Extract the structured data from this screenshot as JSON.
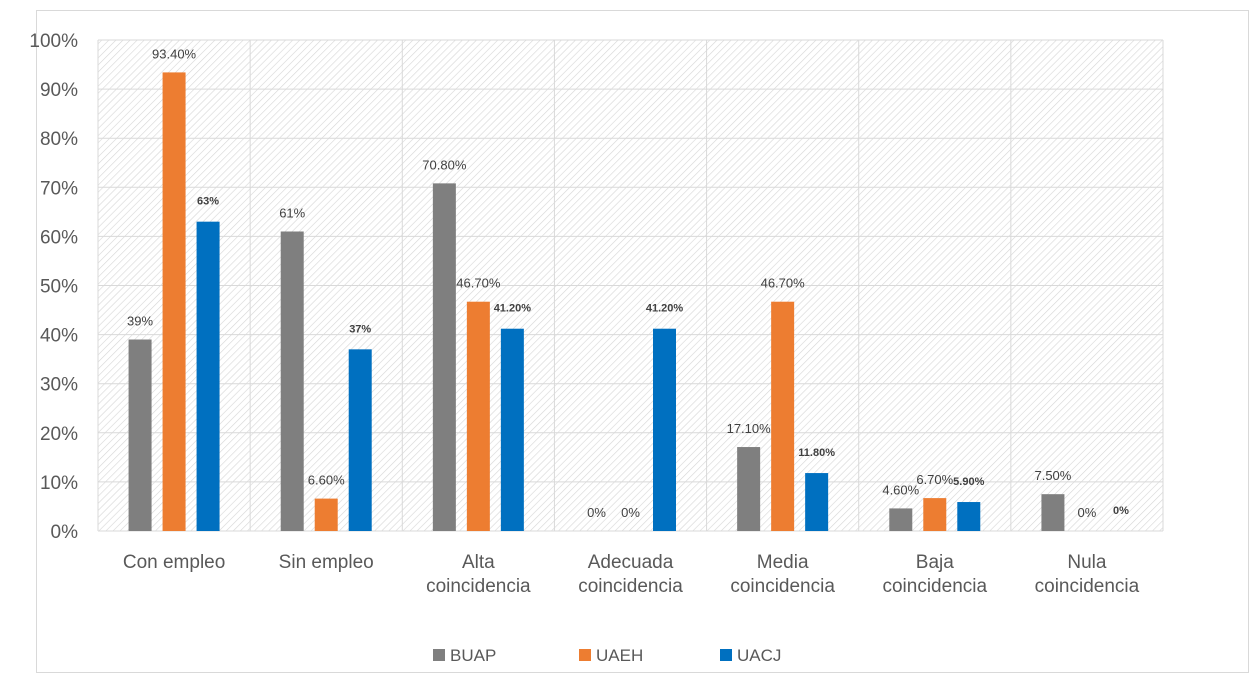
{
  "chart_data": {
    "type": "bar",
    "categories": [
      [
        "Con empleo"
      ],
      [
        "Sin empleo"
      ],
      [
        "Alta",
        "coincidencia"
      ],
      [
        "Adecuada",
        "coincidencia"
      ],
      [
        "Media",
        "coincidencia"
      ],
      [
        "Baja",
        "coincidencia"
      ],
      [
        "Nula",
        "coincidencia"
      ]
    ],
    "series": [
      {
        "name": "BUAP",
        "color": "#7f7f7f",
        "values": [
          39,
          61,
          70.8,
          0,
          17.1,
          4.6,
          7.5
        ],
        "labels": [
          "39%",
          "61%",
          "70.80%",
          "0%",
          "17.10%",
          "4.60%",
          "7.50%"
        ],
        "label_style": "normal"
      },
      {
        "name": "UAEH",
        "color": "#ed7d31",
        "values": [
          93.4,
          6.6,
          46.7,
          0,
          46.7,
          6.7,
          0
        ],
        "labels": [
          "93.40%",
          "6.60%",
          "46.70%",
          "0%",
          "46.70%",
          "6.70%",
          "0%"
        ],
        "label_style": "normal"
      },
      {
        "name": "UACJ",
        "color": "#0070c0",
        "values": [
          63,
          37,
          41.2,
          41.2,
          11.8,
          5.9,
          0
        ],
        "labels": [
          "63%",
          "37%",
          "41.20%",
          "41.20%",
          "11.80%",
          "5.90%",
          "0%"
        ],
        "label_style": "bold"
      }
    ],
    "ylim": [
      0,
      100
    ],
    "yticks": [
      "0%",
      "10%",
      "20%",
      "30%",
      "40%",
      "50%",
      "60%",
      "70%",
      "80%",
      "90%",
      "100%"
    ],
    "grid": true,
    "legend": "bottom",
    "plot_background": "hatched"
  }
}
